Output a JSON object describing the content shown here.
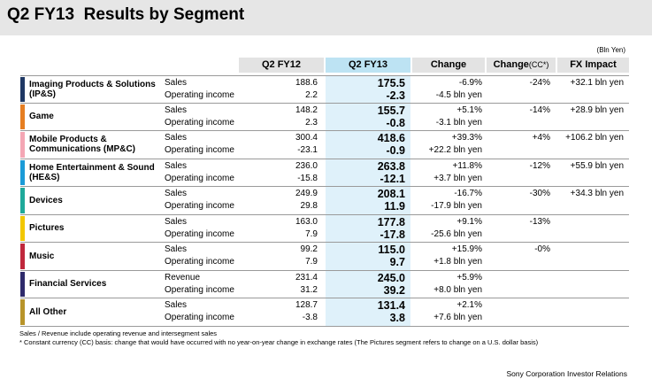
{
  "title": "Q2 FY13  Results by Segment",
  "unit": "(Bln Yen)",
  "columns": {
    "fy12": "Q2 FY12",
    "fy13": "Q2 FY13",
    "change": "Change",
    "change_cc": "Change",
    "change_cc_suffix": "(CC*)",
    "fx": "FX Impact"
  },
  "segments": [
    {
      "name": "Imaging Products & Solutions  (IP&S)",
      "color": "#1f3864",
      "row1": {
        "label": "Sales",
        "fy12": "188.6",
        "fy13": "175.5",
        "change": "-6.9%",
        "cc": "-24%",
        "fx": "+32.1 bln yen"
      },
      "row2": {
        "label": "Operating income",
        "fy12": "2.2",
        "fy13": "-2.3",
        "change": "-4.5 bln yen"
      }
    },
    {
      "name": "Game",
      "color": "#e67e22",
      "row1": {
        "label": "Sales",
        "fy12": "148.2",
        "fy13": "155.7",
        "change": "+5.1%",
        "cc": "-14%",
        "fx": "+28.9 bln yen"
      },
      "row2": {
        "label": "Operating income",
        "fy12": "2.3",
        "fy13": "-0.8",
        "change": "-3.1 bln yen"
      }
    },
    {
      "name": "Mobile Products & Communications  (MP&C)",
      "color": "#f4a6b4",
      "row1": {
        "label": "Sales",
        "fy12": "300.4",
        "fy13": "418.6",
        "change": "+39.3%",
        "cc": "+4%",
        "fx": "+106.2 bln yen"
      },
      "row2": {
        "label": "Operating income",
        "fy12": "-23.1",
        "fy13": "-0.9",
        "change": "+22.2 bln yen"
      }
    },
    {
      "name": "Home Entertainment & Sound  (HE&S)",
      "color": "#1b9bd7",
      "row1": {
        "label": "Sales",
        "fy12": "236.0",
        "fy13": "263.8",
        "change": "+11.8%",
        "cc": "-12%",
        "fx": "+55.9 bln yen"
      },
      "row2": {
        "label": "Operating income",
        "fy12": "-15.8",
        "fy13": "-12.1",
        "change": "+3.7 bln yen"
      }
    },
    {
      "name": "Devices",
      "color": "#1fa99a",
      "row1": {
        "label": "Sales",
        "fy12": "249.9",
        "fy13": "208.1",
        "change": "-16.7%",
        "cc": "-30%",
        "fx": "+34.3 bln yen"
      },
      "row2": {
        "label": "Operating income",
        "fy12": "29.8",
        "fy13": "11.9",
        "change": "-17.9 bln yen"
      }
    },
    {
      "name": "Pictures",
      "color": "#f2c700",
      "row1": {
        "label": "Sales",
        "fy12": "163.0",
        "fy13": "177.8",
        "change": "+9.1%",
        "cc": "-13%",
        "fx": ""
      },
      "row2": {
        "label": "Operating income",
        "fy12": "7.9",
        "fy13": "-17.8",
        "change": "-25.6 bln yen"
      }
    },
    {
      "name": "Music",
      "color": "#c0283c",
      "row1": {
        "label": "Sales",
        "fy12": "99.2",
        "fy13": "115.0",
        "change": "+15.9%",
        "cc": "-0%",
        "fx": ""
      },
      "row2": {
        "label": "Operating income",
        "fy12": "7.9",
        "fy13": "9.7",
        "change": "+1.8 bln yen"
      }
    },
    {
      "name": "Financial Services",
      "color": "#2e2a6b",
      "row1": {
        "label": "Revenue",
        "fy12": "231.4",
        "fy13": "245.0",
        "change": "+5.9%",
        "cc": "",
        "fx": ""
      },
      "row2": {
        "label": "Operating income",
        "fy12": "31.2",
        "fy13": "39.2",
        "change": "+8.0 bln yen"
      }
    },
    {
      "name": "All Other",
      "color": "#b8942a",
      "row1": {
        "label": "Sales",
        "fy12": "128.7",
        "fy13": "131.4",
        "change": "+2.1%",
        "cc": "",
        "fx": ""
      },
      "row2": {
        "label": "Operating income",
        "fy12": "-3.8",
        "fy13": "3.8",
        "change": "+7.6 bln yen"
      }
    }
  ],
  "footnotes": [
    "Sales / Revenue include operating revenue and intersegment sales",
    "* Constant currency (CC) basis: change that would have occurred with no year-on-year change in exchange rates (The Pictures segment refers to change on a U.S. dollar basis)"
  ],
  "credit": "Sony Corporation   Investor Relations"
}
